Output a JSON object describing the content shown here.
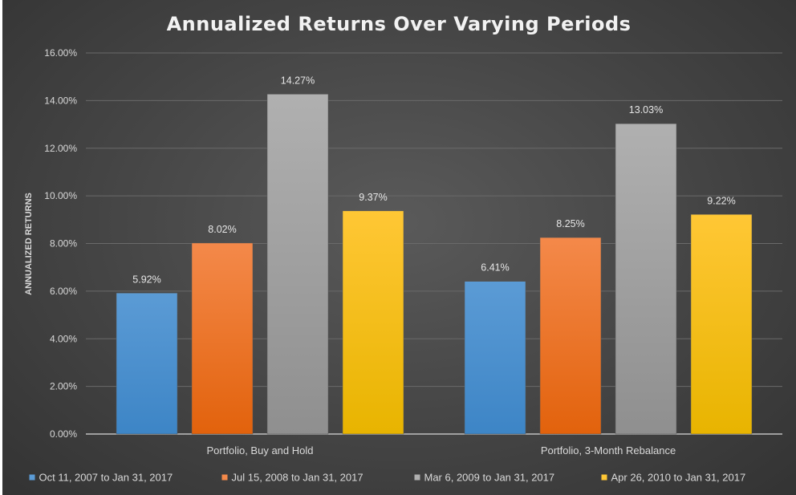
{
  "chart_data": {
    "type": "bar",
    "title": "Annualized Returns Over Varying Periods",
    "xlabel": "",
    "ylabel": "ANNUALIZED RETURNS",
    "categories": [
      "Portfolio, Buy and Hold",
      "Portfolio, 3-Month Rebalance"
    ],
    "ylim": [
      0,
      16
    ],
    "yticks": [
      0,
      2,
      4,
      6,
      8,
      10,
      12,
      14,
      16
    ],
    "ytick_labels": [
      "0.00%",
      "2.00%",
      "4.00%",
      "6.00%",
      "8.00%",
      "10.00%",
      "12.00%",
      "14.00%",
      "16.00%"
    ],
    "grid": true,
    "legend_position": "bottom",
    "series": [
      {
        "name": "Oct 11, 2007 to Jan 31, 2017",
        "values": [
          5.92,
          6.41
        ],
        "labels": [
          "5.92%",
          "6.41%"
        ],
        "color": "#5b9bd5",
        "color_dark": "#3d85c6"
      },
      {
        "name": "Jul 15, 2008 to Jan 31, 2017",
        "values": [
          8.02,
          8.25
        ],
        "labels": [
          "8.02%",
          "8.25%"
        ],
        "color": "#f4894a",
        "color_dark": "#e2620c"
      },
      {
        "name": "Mar 6, 2009 to Jan 31, 2017",
        "values": [
          14.27,
          13.03
        ],
        "labels": [
          "14.27%",
          "13.03%"
        ],
        "color": "#b0b0b0",
        "color_dark": "#8f8f8f"
      },
      {
        "name": "Apr 26, 2010 to Jan 31, 2017",
        "values": [
          9.37,
          9.22
        ],
        "labels": [
          "9.37%",
          "9.22%"
        ],
        "color": "#ffc735",
        "color_dark": "#e8b400"
      }
    ]
  }
}
